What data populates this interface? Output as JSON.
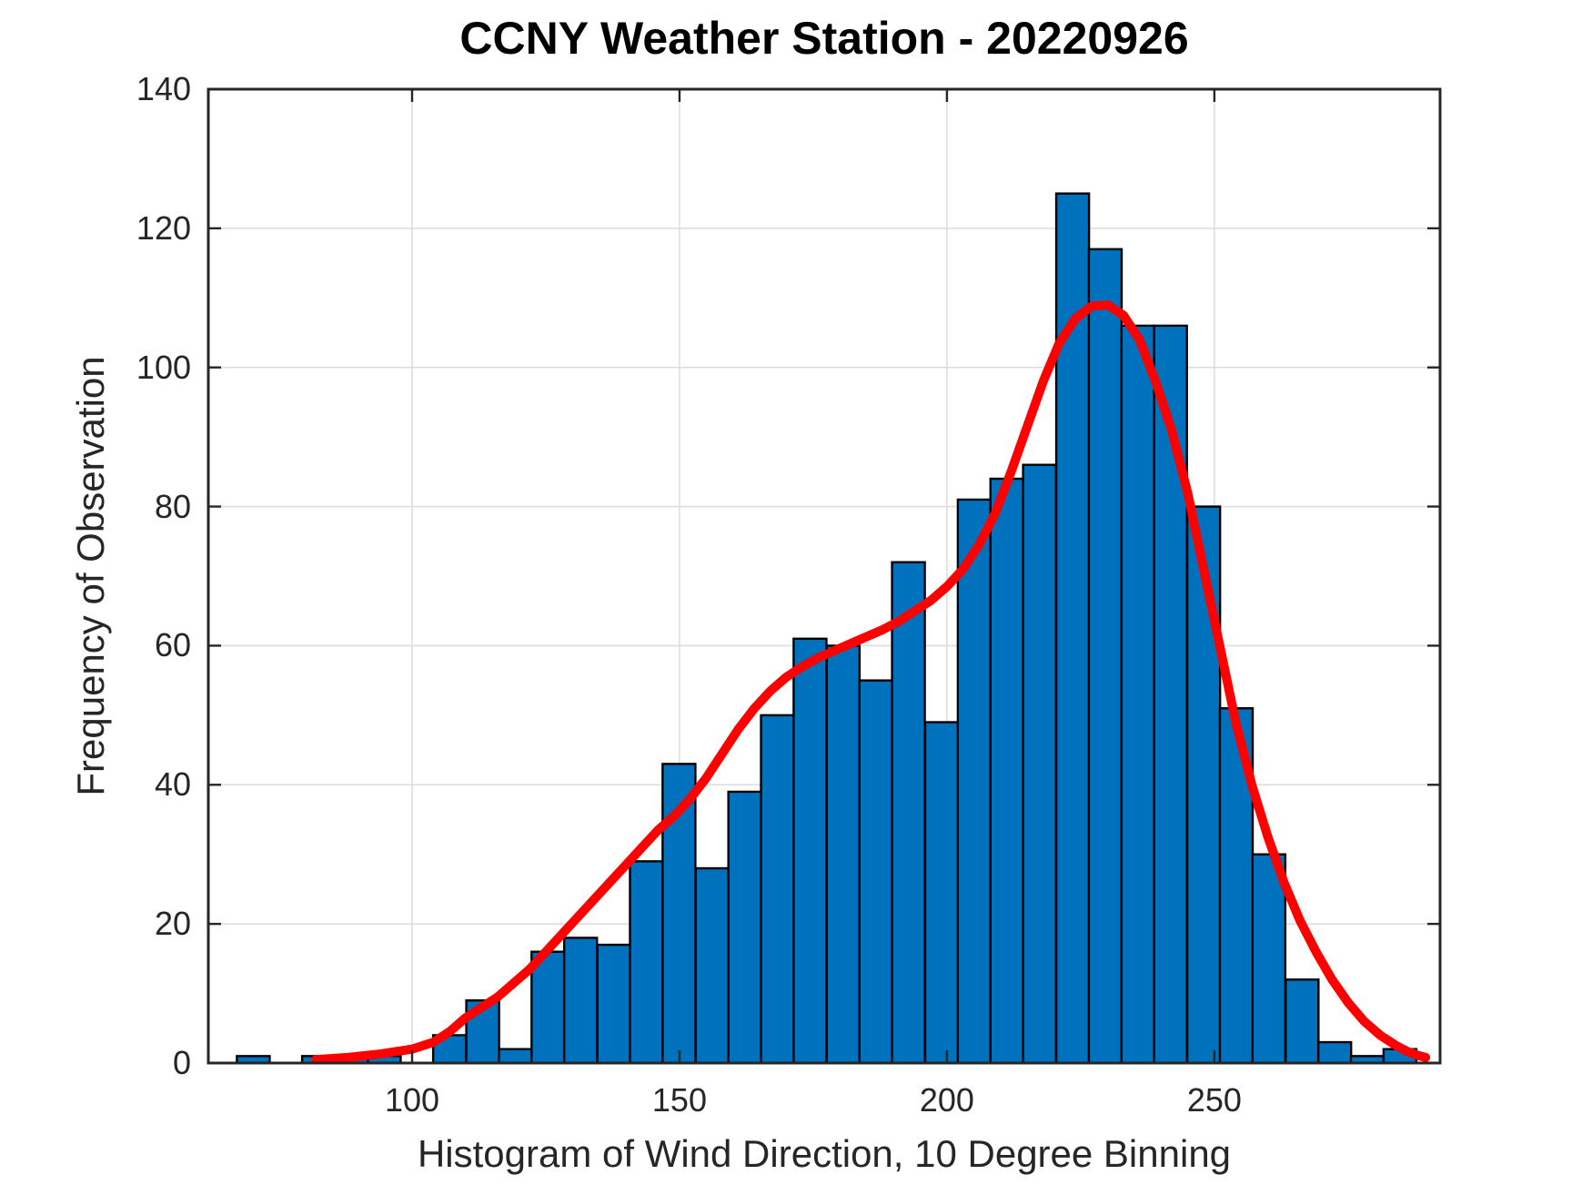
{
  "figure": {
    "title": "CCNY Weather Station - 20220926",
    "xlabel": "Histogram of Wind Direction, 10 Degree Binning",
    "ylabel": "Frequency of Observation"
  },
  "chart_data": {
    "type": "bar",
    "subtype": "histogram-with-density-fit",
    "title": "CCNY Weather Station - 20220926",
    "xlabel": "Histogram of Wind Direction, 10 Degree Binning",
    "ylabel": "Frequency of Observation",
    "grid": true,
    "xlim": [
      61.9,
      292.2
    ],
    "ylim": [
      0,
      140
    ],
    "xticks": [
      100,
      150,
      200,
      250
    ],
    "yticks": [
      0,
      20,
      40,
      60,
      80,
      100,
      120,
      140
    ],
    "bin_width_deg": 6.13,
    "bin_centers_deg": [
      70.3,
      76.4,
      82.5,
      88.7,
      94.8,
      100.9,
      107.0,
      113.2,
      119.3,
      125.4,
      131.5,
      137.7,
      143.8,
      149.9,
      156.1,
      162.2,
      168.3,
      174.4,
      180.6,
      186.7,
      192.8,
      199.0,
      205.1,
      211.2,
      217.3,
      223.5,
      229.6,
      235.7,
      241.8,
      248.0,
      254.1,
      260.2,
      266.4,
      272.5,
      278.6,
      284.7
    ],
    "counts": [
      1,
      0,
      1,
      1,
      1,
      0,
      4,
      9,
      2,
      16,
      18,
      17,
      29,
      43,
      28,
      39,
      50,
      61,
      60,
      55,
      72,
      49,
      81,
      84,
      86,
      125,
      117,
      106,
      106,
      80,
      51,
      30,
      12,
      3,
      1,
      2
    ],
    "bar_color": "#0072BD",
    "bar_edge_color": "#000000",
    "grid_color": "#DEDEDE",
    "axis_color": "#262626",
    "fit_curve": {
      "color": "#FF0000",
      "x_deg": [
        82,
        88,
        94,
        100,
        104,
        107,
        110,
        113,
        116,
        119,
        122,
        125,
        128,
        131,
        134,
        137,
        140,
        143,
        146,
        149,
        152,
        155,
        158,
        161,
        164,
        167,
        170,
        173,
        176,
        179,
        182,
        185,
        188,
        191,
        194,
        197,
        200,
        203,
        206,
        209,
        212,
        215,
        218,
        221,
        224,
        227,
        230,
        233,
        236,
        239,
        242,
        245,
        248,
        251,
        254,
        257,
        260,
        263,
        266,
        269,
        272,
        275,
        278,
        281,
        284,
        286,
        288,
        289.5
      ],
      "y": [
        0.5,
        0.8,
        1.3,
        2,
        3,
        4.5,
        6.5,
        8,
        9.5,
        11.5,
        13.5,
        16,
        18.5,
        21,
        23.5,
        26,
        28.5,
        31,
        33.5,
        35.5,
        38,
        41,
        44.5,
        48,
        51,
        53.5,
        55.5,
        57,
        58.3,
        59.3,
        60.3,
        61.3,
        62.3,
        63.5,
        65,
        66.5,
        68.5,
        71,
        74.5,
        79,
        85,
        91.5,
        98,
        103.5,
        107,
        108.8,
        109,
        107.5,
        104,
        98,
        91,
        82,
        71,
        60,
        49,
        40,
        32.5,
        26,
        20.5,
        16,
        12,
        8.7,
        6,
        4,
        2.5,
        1.7,
        1.1,
        0.8
      ]
    }
  }
}
